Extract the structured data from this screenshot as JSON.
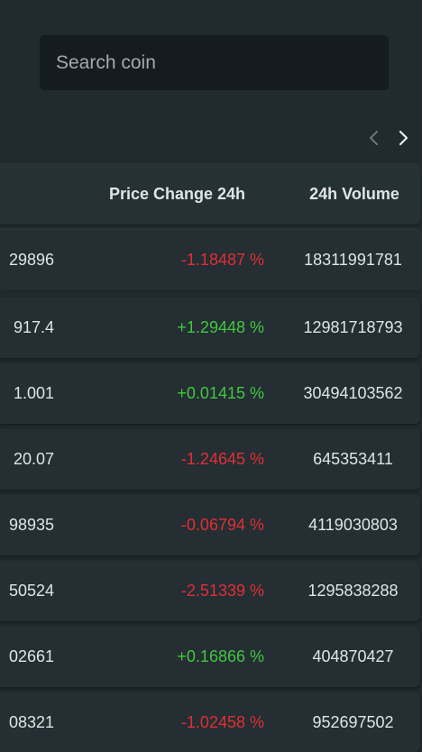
{
  "search": {
    "placeholder": "Search coin"
  },
  "pager": {
    "prev_icon": "chevron-left-icon",
    "next_icon": "chevron-right-icon"
  },
  "table": {
    "headers": {
      "price_change": "Price Change 24h",
      "volume": "24h Volume"
    },
    "rows": [
      {
        "price": "29896",
        "change": "-1.18487 %",
        "direction": "down",
        "volume": "18311991781"
      },
      {
        "price": "917.4",
        "change": "+1.29448 %",
        "direction": "up",
        "volume": "12981718793"
      },
      {
        "price": "1.001",
        "change": "+0.01415 %",
        "direction": "up",
        "volume": "30494103562"
      },
      {
        "price": "20.07",
        "change": "-1.24645 %",
        "direction": "down",
        "volume": "645353411"
      },
      {
        "price": "98935",
        "change": "-0.06794 %",
        "direction": "down",
        "volume": "4119030803"
      },
      {
        "price": "50524",
        "change": "-2.51339 %",
        "direction": "down",
        "volume": "1295838288"
      },
      {
        "price": "02661",
        "change": "+0.16866 %",
        "direction": "up",
        "volume": "404870427"
      },
      {
        "price": "08321",
        "change": "-1.02458 %",
        "direction": "down",
        "volume": "952697502"
      }
    ]
  },
  "colors": {
    "background": "#212a2f",
    "positive": "#44c63f",
    "negative": "#e02f35"
  }
}
